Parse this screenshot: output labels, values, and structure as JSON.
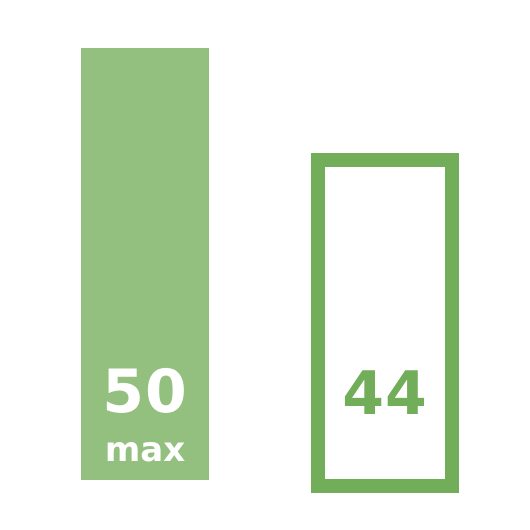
{
  "colors": {
    "max_fill": "#93c07e",
    "current_stroke": "#72ad59",
    "current_text": "#72ad59"
  },
  "gauge": {
    "max": {
      "value": "50",
      "label": "max"
    },
    "current": {
      "value": "44"
    }
  }
}
